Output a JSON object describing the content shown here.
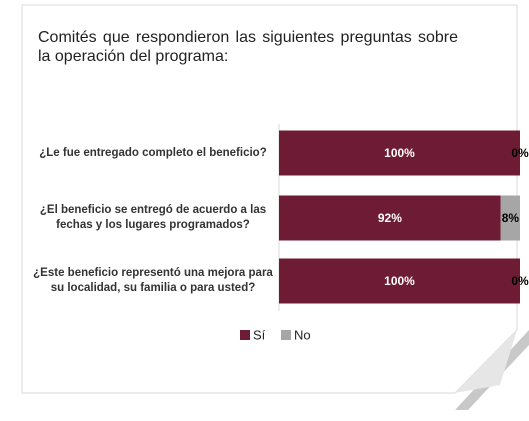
{
  "chart_data": {
    "type": "stacked-bar-horizontal",
    "title": "Comités que respondieron las siguientes preguntas sobre la operación del programa:",
    "categories": [
      "¿Le fue entregado completo el beneficio?",
      "¿El beneficio se entregó de acuerdo a las fechas y los lugares programados?",
      "¿Este beneficio representó una mejora para su localidad, su familia o para usted?"
    ],
    "series": [
      {
        "name": "Sí",
        "color": "#6e1c35",
        "values": [
          100,
          92,
          100
        ],
        "value_labels": [
          "100%",
          "92%",
          "100%"
        ]
      },
      {
        "name": "No",
        "color": "#a6a6a6",
        "values": [
          0,
          8,
          0
        ],
        "value_labels": [
          "0%",
          "8%",
          "0%"
        ]
      }
    ],
    "xlim": [
      0,
      100
    ]
  }
}
